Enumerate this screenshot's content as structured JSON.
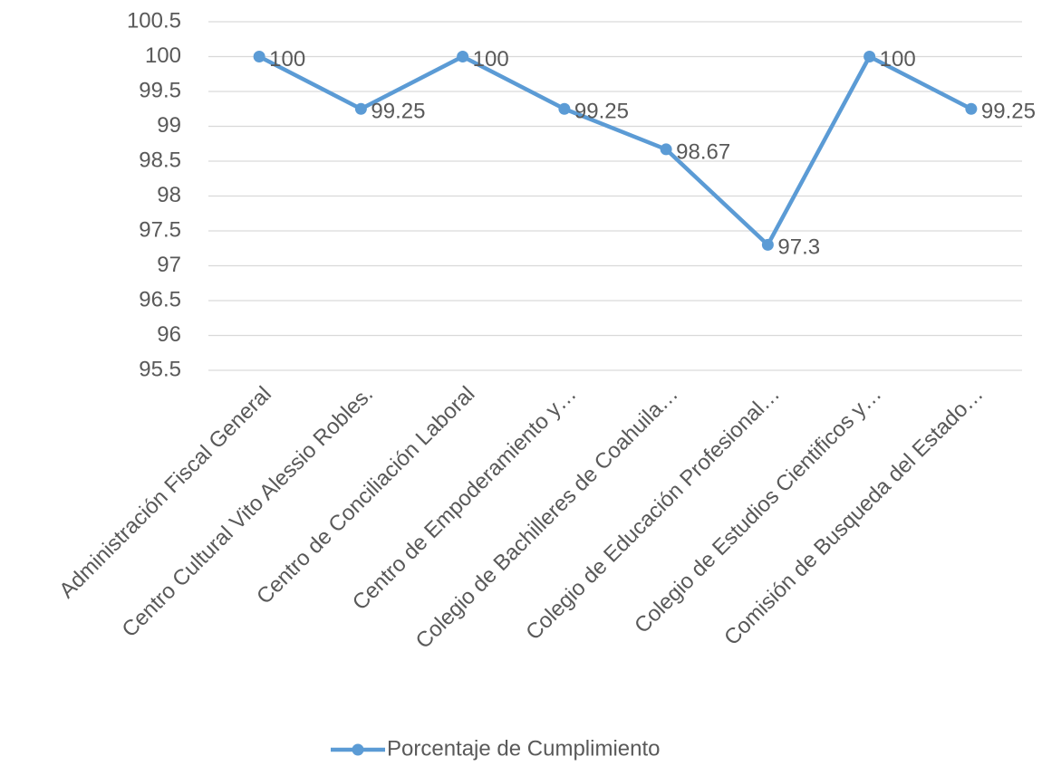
{
  "chart_data": {
    "type": "line",
    "categories": [
      "Administración Fiscal General",
      "Centro Cultural Vito Alessio Robles.",
      "Centro de Conciliación Laboral",
      "Centro de Empoderamiento y…",
      "Colegio de Bachilleres de Coahuila…",
      "Colegio de Educación Profesional…",
      "Colegio de Estudios Cientificos y…",
      "Comisión de Busqueda del Estado…"
    ],
    "series": [
      {
        "name": "Porcentaje de Cumplimiento",
        "color": "#5b9bd5",
        "values": [
          100,
          99.25,
          100,
          99.25,
          98.67,
          97.3,
          100,
          99.25
        ]
      }
    ],
    "ylim": [
      95.5,
      100.5
    ],
    "yticks": [
      95.5,
      96,
      96.5,
      97,
      97.5,
      98,
      98.5,
      99,
      99.5,
      100,
      100.5
    ],
    "grid": true,
    "legend": "bottom",
    "data_labels": true
  }
}
